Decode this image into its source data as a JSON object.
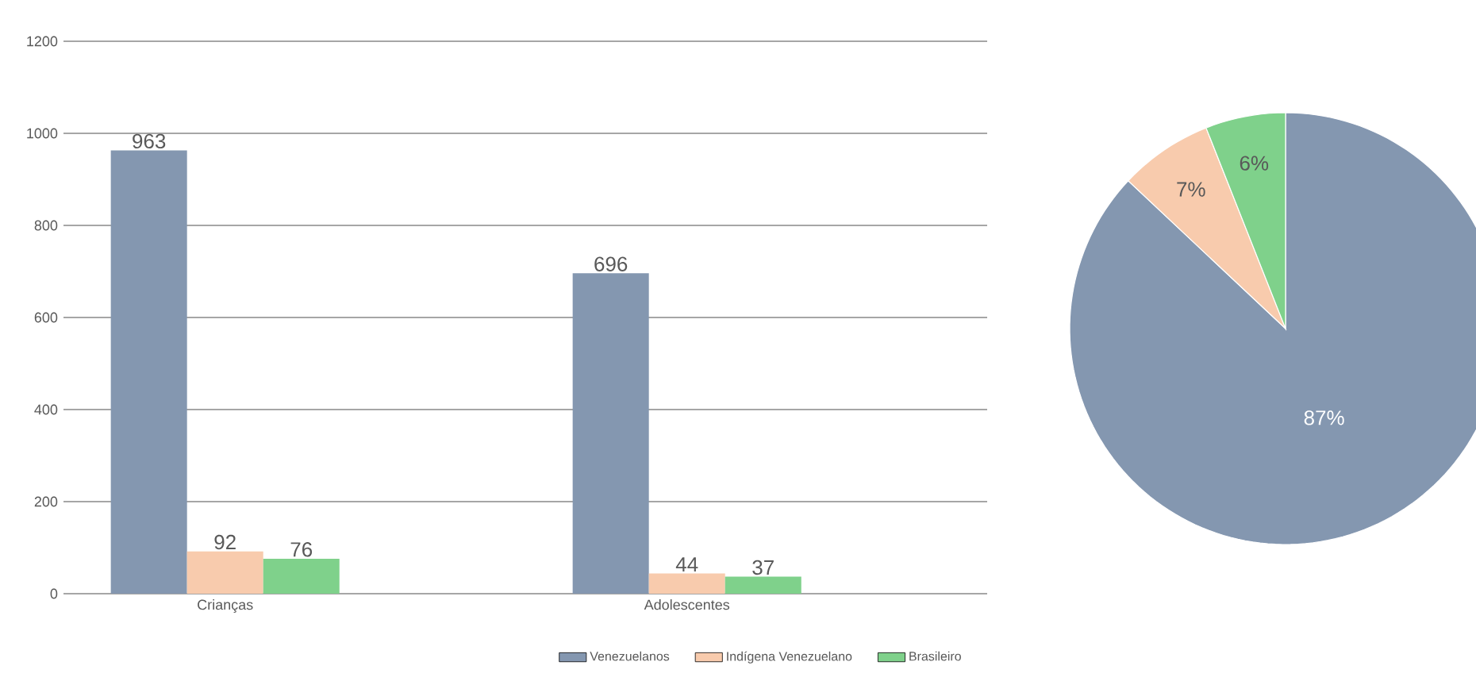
{
  "chart_data": [
    {
      "type": "bar",
      "categories": [
        "Crianças",
        "Adolescentes"
      ],
      "series": [
        {
          "name": "Venezuelanos",
          "color": "#8497b0",
          "values": [
            963,
            696
          ]
        },
        {
          "name": "Indígena Venezuelano",
          "color": "#f8cbad",
          "values": [
            92,
            44
          ]
        },
        {
          "name": "Brasileiro",
          "color": "#7fd18b",
          "values": [
            76,
            37
          ]
        }
      ],
      "ylim": [
        0,
        1200
      ],
      "yticks": [
        0,
        200,
        400,
        600,
        800,
        1000,
        1200
      ],
      "grid": "y",
      "legend": "bottom",
      "data_labels": true
    },
    {
      "type": "pie",
      "categories": [
        null,
        null,
        null
      ],
      "values": [
        87,
        7,
        6
      ],
      "colors": [
        "#8497b0",
        "#f8cbad",
        "#7fd18b"
      ],
      "value_labels": [
        "87%",
        "7%",
        "6%"
      ]
    }
  ]
}
